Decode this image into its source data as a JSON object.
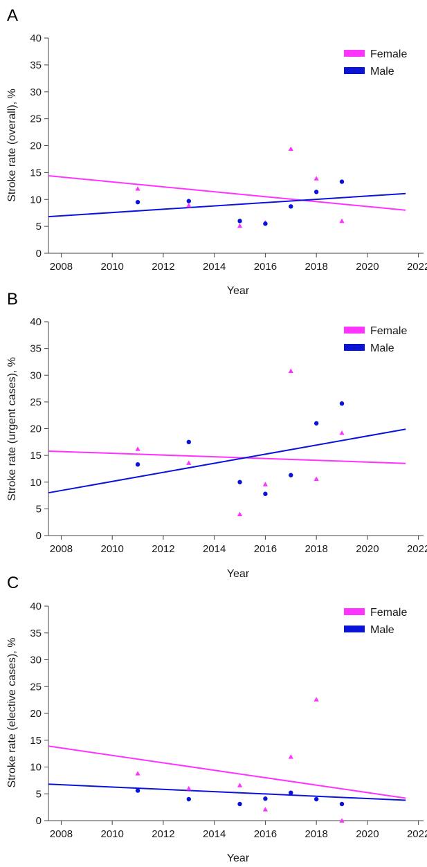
{
  "chart_data": [
    {
      "panel": "A",
      "type": "scatter",
      "xlabel": "Year",
      "ylabel": "Stroke rate (overall), %",
      "xlim": [
        2007.5,
        2022.2
      ],
      "ylim": [
        0,
        40
      ],
      "xticks": [
        2008,
        2010,
        2012,
        2014,
        2016,
        2018,
        2020,
        2022
      ],
      "yticks": [
        0,
        5,
        10,
        15,
        20,
        25,
        30,
        35,
        40
      ],
      "legend_position": "top-right",
      "series": [
        {
          "name": "Female",
          "color": "#ff33ff",
          "marker": "triangle",
          "points": [
            [
              2011,
              12.0
            ],
            [
              2013,
              8.9
            ],
            [
              2015,
              5.1
            ],
            [
              2016,
              5.7
            ],
            [
              2017,
              19.4
            ],
            [
              2018,
              13.9
            ],
            [
              2019,
              6.0
            ]
          ],
          "trend": [
            [
              2007.5,
              14.4
            ],
            [
              2021.5,
              8.0
            ]
          ]
        },
        {
          "name": "Male",
          "color": "#0a14d9",
          "marker": "circle",
          "points": [
            [
              2011,
              9.5
            ],
            [
              2013,
              9.7
            ],
            [
              2015,
              6.0
            ],
            [
              2016,
              5.5
            ],
            [
              2017,
              8.7
            ],
            [
              2018,
              11.4
            ],
            [
              2019,
              13.3
            ]
          ],
          "trend": [
            [
              2007.5,
              6.8
            ],
            [
              2021.5,
              11.1
            ]
          ]
        }
      ]
    },
    {
      "panel": "B",
      "type": "scatter",
      "xlabel": "Year",
      "ylabel": "Stroke rate (urgent cases), %",
      "xlim": [
        2007.5,
        2022.2
      ],
      "ylim": [
        0,
        40
      ],
      "xticks": [
        2008,
        2010,
        2012,
        2014,
        2016,
        2018,
        2020,
        2022
      ],
      "yticks": [
        0,
        5,
        10,
        15,
        20,
        25,
        30,
        35,
        40
      ],
      "legend_position": "top-right",
      "series": [
        {
          "name": "Female",
          "color": "#ff33ff",
          "marker": "triangle",
          "points": [
            [
              2011,
              16.2
            ],
            [
              2013,
              13.6
            ],
            [
              2015,
              4.0
            ],
            [
              2016,
              9.6
            ],
            [
              2017,
              30.8
            ],
            [
              2018,
              10.6
            ],
            [
              2019,
              19.2
            ]
          ],
          "trend": [
            [
              2007.5,
              15.8
            ],
            [
              2021.5,
              13.5
            ]
          ]
        },
        {
          "name": "Male",
          "color": "#0a14d9",
          "marker": "circle",
          "points": [
            [
              2011,
              13.3
            ],
            [
              2013,
              17.5
            ],
            [
              2015,
              10.0
            ],
            [
              2016,
              7.8
            ],
            [
              2017,
              11.3
            ],
            [
              2018,
              21.0
            ],
            [
              2019,
              24.7
            ]
          ],
          "trend": [
            [
              2007.5,
              8.0
            ],
            [
              2021.5,
              19.9
            ]
          ]
        }
      ]
    },
    {
      "panel": "C",
      "type": "scatter",
      "xlabel": "Year",
      "ylabel": "Stroke rate (elective cases), %",
      "xlim": [
        2007.5,
        2022.2
      ],
      "ylim": [
        0,
        40
      ],
      "xticks": [
        2008,
        2010,
        2012,
        2014,
        2016,
        2018,
        2020,
        2022
      ],
      "yticks": [
        0,
        5,
        10,
        15,
        20,
        25,
        30,
        35,
        40
      ],
      "legend_position": "top-right",
      "series": [
        {
          "name": "Female",
          "color": "#ff33ff",
          "marker": "triangle",
          "points": [
            [
              2011,
              8.8
            ],
            [
              2013,
              6.0
            ],
            [
              2015,
              6.6
            ],
            [
              2016,
              2.1
            ],
            [
              2017,
              11.9
            ],
            [
              2018,
              22.6
            ],
            [
              2019,
              0.0
            ]
          ],
          "trend": [
            [
              2007.5,
              13.9
            ],
            [
              2021.5,
              4.2
            ]
          ]
        },
        {
          "name": "Male",
          "color": "#0a14d9",
          "marker": "circle",
          "points": [
            [
              2011,
              5.6
            ],
            [
              2013,
              4.0
            ],
            [
              2015,
              3.1
            ],
            [
              2016,
              4.1
            ],
            [
              2017,
              5.2
            ],
            [
              2018,
              4.0
            ],
            [
              2019,
              3.1
            ]
          ],
          "trend": [
            [
              2007.5,
              6.8
            ],
            [
              2021.5,
              3.8
            ]
          ]
        }
      ]
    }
  ]
}
